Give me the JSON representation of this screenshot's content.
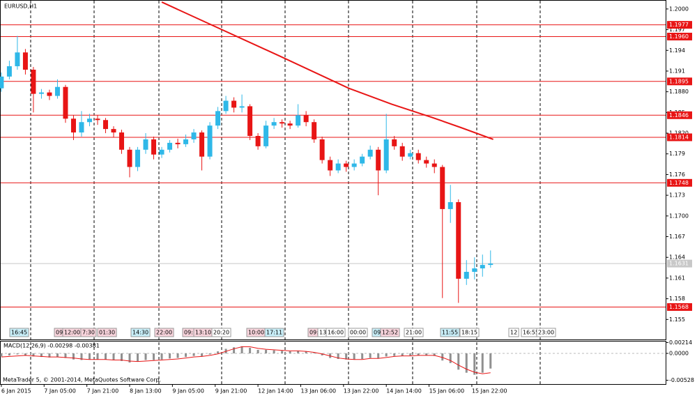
{
  "chart_data": [
    {
      "type": "candlestick",
      "title": "EURUSD,H1",
      "x": [
        0,
        3,
        6,
        9,
        12,
        15,
        18,
        21,
        24,
        27,
        30,
        33,
        36,
        39,
        42,
        45,
        48,
        51,
        54,
        57,
        60,
        63,
        66,
        69,
        72,
        75,
        78,
        81,
        84,
        87,
        90,
        93,
        96,
        99,
        102,
        105,
        108,
        111,
        114,
        117,
        120,
        123,
        126,
        129,
        132,
        135,
        138,
        141,
        144,
        147,
        150,
        153,
        156,
        159,
        162,
        165,
        168,
        171,
        174,
        177,
        180,
        183
      ],
      "open": [
        1.1885,
        1.1902,
        1.1917,
        1.1937,
        1.1912,
        1.1877,
        1.1879,
        1.1874,
        1.1887,
        1.1841,
        1.1821,
        1.1836,
        1.1841,
        1.1839,
        1.1826,
        1.1821,
        1.1796,
        1.1771,
        1.1796,
        1.1811,
        1.1789,
        1.1796,
        1.1806,
        1.1804,
        1.1811,
        1.1821,
        1.1786,
        1.1831,
        1.1852,
        1.1867,
        1.1857,
        1.1859,
        1.1816,
        1.1801,
        1.1831,
        1.1836,
        1.1834,
        1.1831,
        1.1846,
        1.1836,
        1.1811,
        1.1781,
        1.1766,
        1.1776,
        1.1771,
        1.1776,
        1.1786,
        1.1796,
        1.1766,
        1.1811,
        1.1801,
        1.1786,
        1.1791,
        1.1781,
        1.1776,
        1.1771,
        1.171,
        1.172,
        1.1609,
        1.1619,
        1.1624,
        1.1629
      ],
      "high": [
        1.1908,
        1.1925,
        1.1961,
        1.1942,
        1.1916,
        1.1884,
        1.1883,
        1.1898,
        1.189,
        1.1846,
        1.1852,
        1.1848,
        1.1846,
        1.1842,
        1.183,
        1.1825,
        1.18,
        1.18,
        1.182,
        1.1815,
        1.18,
        1.181,
        1.1812,
        1.1818,
        1.1826,
        1.1824,
        1.1836,
        1.1858,
        1.1874,
        1.1872,
        1.1876,
        1.1862,
        1.182,
        1.1838,
        1.1842,
        1.184,
        1.1838,
        1.1862,
        1.1852,
        1.184,
        1.1815,
        1.1786,
        1.1782,
        1.178,
        1.1782,
        1.179,
        1.1802,
        1.18,
        1.1848,
        1.1816,
        1.1806,
        1.1796,
        1.1796,
        1.1786,
        1.1782,
        1.1774,
        1.1745,
        1.1724,
        1.1636,
        1.164,
        1.1644,
        1.165
      ],
      "low": [
        1.188,
        1.1898,
        1.1912,
        1.1905,
        1.185,
        1.187,
        1.1868,
        1.187,
        1.1835,
        1.181,
        1.1815,
        1.183,
        1.1832,
        1.182,
        1.1814,
        1.179,
        1.1756,
        1.1765,
        1.179,
        1.1782,
        1.1784,
        1.1792,
        1.1798,
        1.18,
        1.1806,
        1.1766,
        1.1782,
        1.1826,
        1.1848,
        1.185,
        1.185,
        1.181,
        1.1796,
        1.1798,
        1.1826,
        1.1828,
        1.1826,
        1.1828,
        1.183,
        1.1806,
        1.1776,
        1.1758,
        1.1762,
        1.1764,
        1.1766,
        1.1772,
        1.1782,
        1.173,
        1.1762,
        1.1796,
        1.178,
        1.1782,
        1.1776,
        1.177,
        1.1762,
        1.1581,
        1.169,
        1.1574,
        1.16,
        1.1608,
        1.1612,
        1.1625
      ],
      "close": [
        1.1902,
        1.1917,
        1.1937,
        1.1912,
        1.1877,
        1.1879,
        1.1874,
        1.1887,
        1.1841,
        1.1821,
        1.1836,
        1.1841,
        1.1839,
        1.1826,
        1.1821,
        1.1796,
        1.1771,
        1.1796,
        1.1811,
        1.1789,
        1.1796,
        1.1806,
        1.1804,
        1.1811,
        1.1821,
        1.1786,
        1.1831,
        1.1852,
        1.1867,
        1.1857,
        1.1859,
        1.1816,
        1.1801,
        1.1831,
        1.1836,
        1.1834,
        1.1831,
        1.1846,
        1.1836,
        1.1811,
        1.1781,
        1.1766,
        1.1776,
        1.1771,
        1.1776,
        1.1786,
        1.1796,
        1.1766,
        1.1811,
        1.1801,
        1.1786,
        1.1791,
        1.1781,
        1.1776,
        1.1771,
        1.171,
        1.172,
        1.1609,
        1.1619,
        1.1624,
        1.1629,
        1.1631
      ],
      "up_color": "#2fb8e8",
      "down_color": "#e81515",
      "ma": {
        "x": [
          60,
          78,
          104,
          130,
          146,
          161,
          172,
          184
        ],
        "values": [
          1.201,
          1.1978,
          1.1932,
          1.1885,
          1.1862,
          1.1843,
          1.1828,
          1.1811
        ],
        "color": "#e81515"
      },
      "levels": [
        1.1977,
        1.196,
        1.1895,
        1.1846,
        1.1814,
        1.1748,
        1.1568
      ],
      "level_labels": [
        "1.1977",
        "1.1960",
        "1.1895",
        "1.1846",
        "1.1814",
        "1.1748",
        "1.1568"
      ],
      "level_color": "#e81515",
      "current": 1.1631,
      "current_label": "1.1631",
      "events": [
        "16:45",
        "09",
        "12:00",
        "7:30",
        "01:30",
        "14:30",
        "22:00",
        "09:",
        "13:10",
        "20:20",
        "10:00",
        "17:11",
        "09:",
        "13",
        "16:00",
        "00:00",
        "09",
        "12:52",
        "21:00",
        "11:55",
        "18:15",
        "12",
        "16:55",
        "23:00"
      ],
      "xlim": [
        -0.5,
        248.5
      ],
      "xticks": [
        {
          "value": 0,
          "label": "6 Jan 2015"
        },
        {
          "value": 16,
          "label": "7 Jan 05:00"
        },
        {
          "value": 32,
          "label": "7 Jan 21:00"
        },
        {
          "value": 48,
          "label": "8 Jan 13:00"
        },
        {
          "value": 64,
          "label": "9 Jan 05:00"
        },
        {
          "value": 80,
          "label": "9 Jan 21:00"
        },
        {
          "value": 96,
          "label": "12 Jan 14:00"
        },
        {
          "value": 112,
          "label": "13 Jan 06:00"
        },
        {
          "value": 128,
          "label": "13 Jan 22:00"
        },
        {
          "value": 144,
          "label": "14 Jan 14:00"
        },
        {
          "value": 160,
          "label": "15 Jan 06:00"
        },
        {
          "value": 176,
          "label": "15 Jan 22:00"
        }
      ],
      "ylim": [
        1.1521,
        1.2013
      ],
      "yticks": [
        {
          "value": 1.2,
          "label": "1.2000"
        },
        1.197,
        1.194,
        1.191,
        {
          "value": 1.188,
          "label": "1.1880"
        },
        1.185,
        {
          "value": 1.182,
          "label": "1.1820"
        },
        1.179,
        1.176,
        1.173,
        {
          "value": 1.17,
          "label": "1.1700"
        },
        1.167,
        1.164,
        1.161,
        1.158,
        1.155
      ],
      "grid": false
    },
    {
      "type": "macd",
      "title": "MACD(12,26,9) -0.00298 -0.00381",
      "values": [
        -0.0006,
        -0.0004,
        -0.0002,
        -0.0004,
        -0.0006,
        -0.0007,
        -0.0008,
        -0.0007,
        -0.0009,
        -0.0012,
        -0.0013,
        -0.0012,
        -0.0012,
        -0.0012,
        -0.0013,
        -0.0015,
        -0.0018,
        -0.0016,
        -0.0013,
        -0.0013,
        -0.0012,
        -0.001,
        -0.0009,
        -0.0007,
        -0.0005,
        -0.0006,
        -0.0002,
        0.0004,
        0.0009,
        0.0012,
        0.0014,
        0.0011,
        0.0007,
        0.0007,
        0.0006,
        0.0005,
        0.0004,
        0.0005,
        0.0004,
        0.0001,
        -0.0004,
        -0.0009,
        -0.0011,
        -0.0012,
        -0.0012,
        -0.0011,
        -0.0009,
        -0.001,
        -0.0006,
        -0.0005,
        -0.0005,
        -0.0004,
        -0.0004,
        -0.0004,
        -0.0005,
        -0.0014,
        -0.0019,
        -0.0032,
        -0.0038,
        -0.0042,
        -0.0038,
        -0.00298
      ],
      "signal": [
        -0.0007,
        -0.0006,
        -0.0005,
        -0.0004,
        -0.0005,
        -0.0006,
        -0.0007,
        -0.0007,
        -0.0008,
        -0.0009,
        -0.0011,
        -0.0012,
        -0.0012,
        -0.0012,
        -0.0013,
        -0.0013,
        -0.0015,
        -0.0016,
        -0.0015,
        -0.0014,
        -0.0013,
        -0.0012,
        -0.0011,
        -0.0009,
        -0.0007,
        -0.0006,
        -0.0004,
        -0.0001,
        0.0004,
        0.0009,
        0.0013,
        0.0013,
        0.001,
        0.0008,
        0.0007,
        0.0006,
        0.0005,
        0.0005,
        0.0004,
        0.0002,
        -0.0001,
        -0.0005,
        -0.0009,
        -0.0011,
        -0.0012,
        -0.0012,
        -0.001,
        -0.001,
        -0.0008,
        -0.0006,
        -0.0005,
        -0.0005,
        -0.0004,
        -0.0004,
        -0.0004,
        -0.0008,
        -0.0014,
        -0.0023,
        -0.0031,
        -0.0037,
        -0.004,
        -0.00381
      ],
      "color": "#909090",
      "signal_color": "#e81515",
      "ylim": [
        -0.00603,
        0.00233
      ],
      "yticks": [
        0.00214,
        {
          "value": 0,
          "label": "0.0000"
        },
        -0.00528
      ]
    },
    {
      "type": "text",
      "title": "MetaTrader 5, © 2001-2014, MetaQuotes Software Corp."
    }
  ]
}
